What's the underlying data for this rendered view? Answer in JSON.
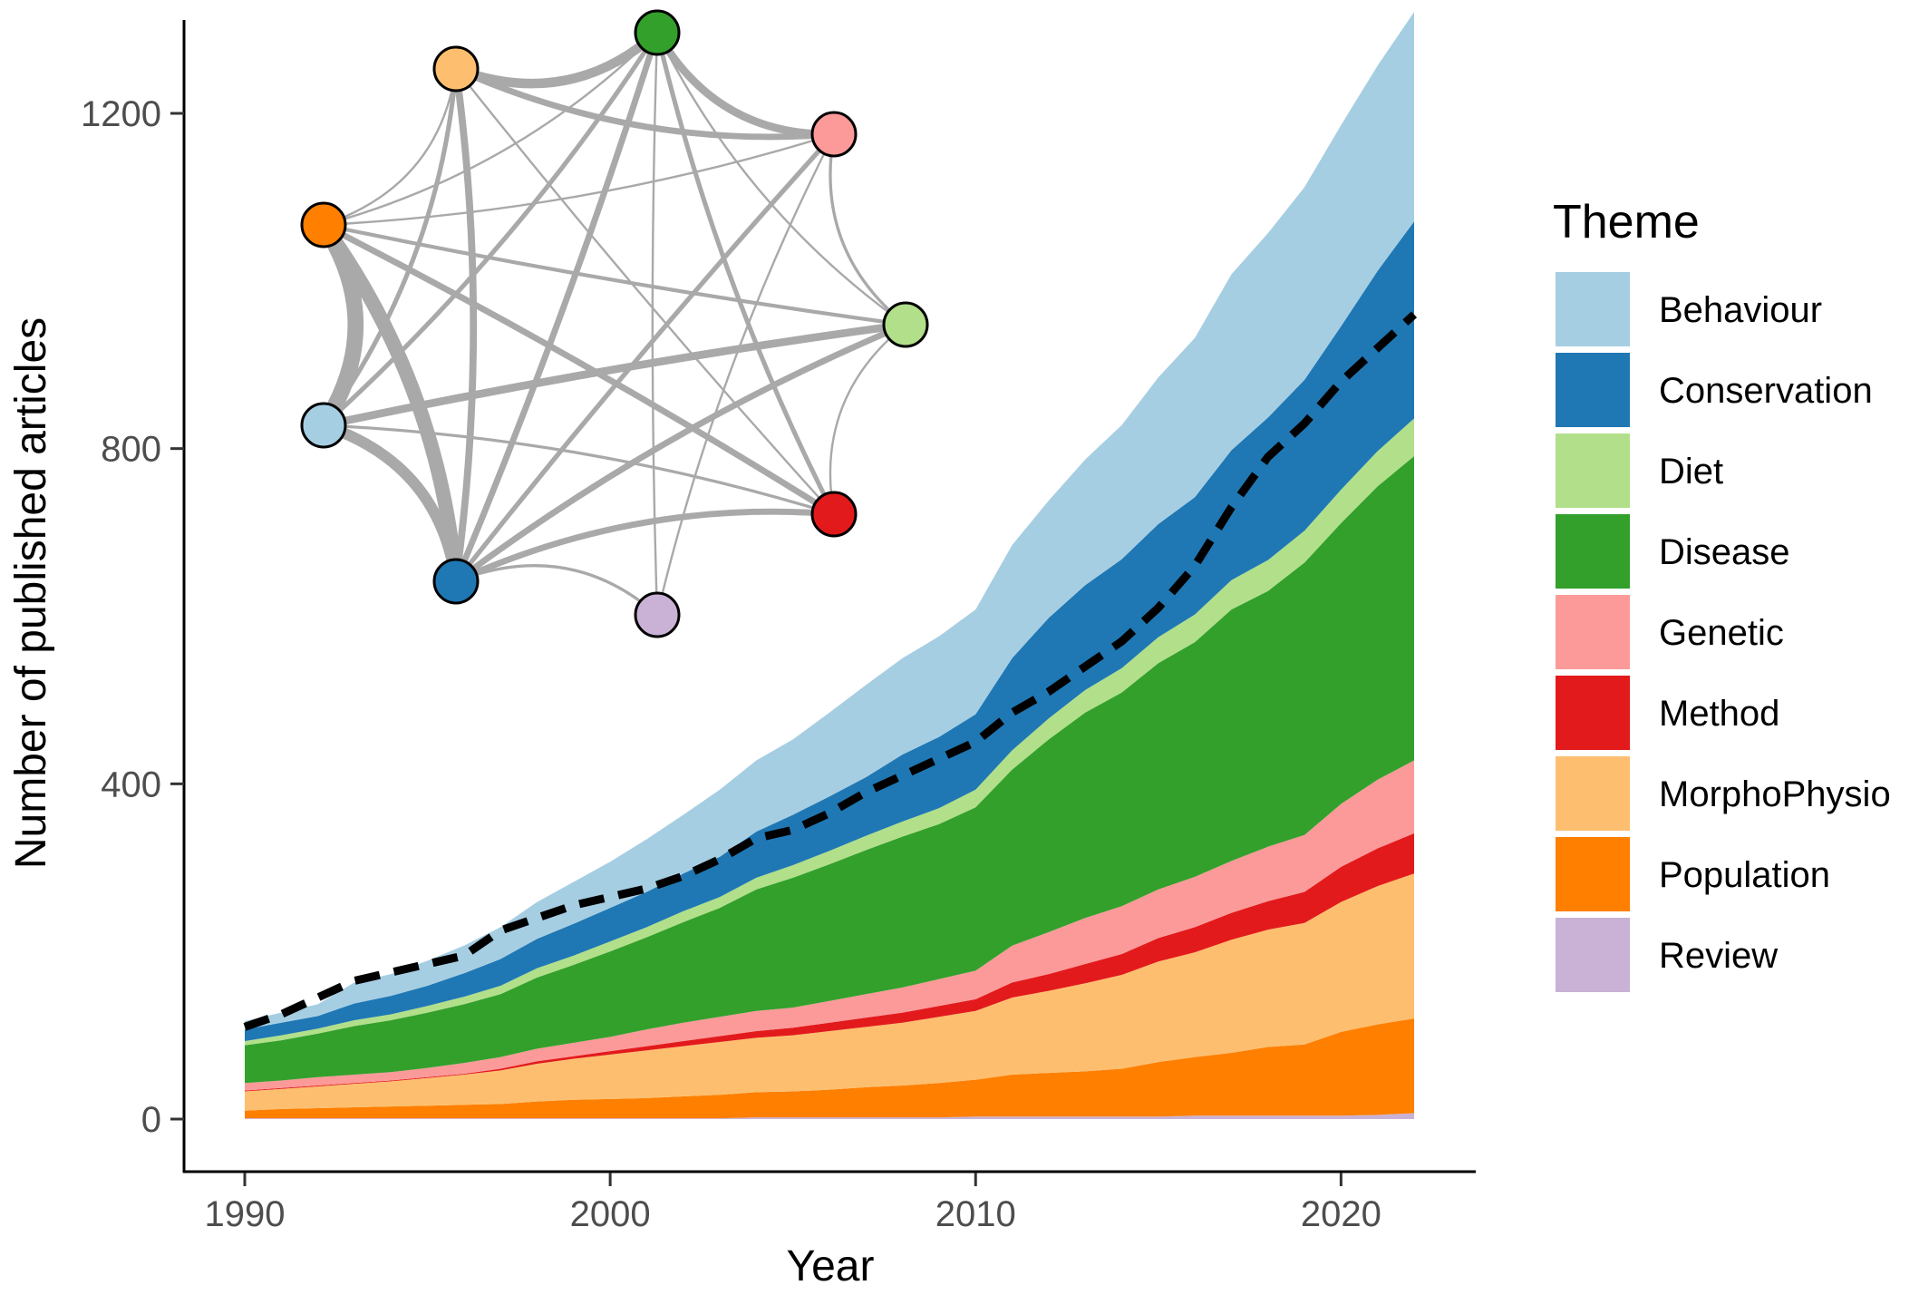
{
  "chart_data": {
    "type": "area",
    "stacked": true,
    "xlabel": "Year",
    "ylabel": "Number of published articles",
    "xlim": [
      1990,
      2022
    ],
    "ylim": [
      0,
      1300
    ],
    "x_ticks": [
      1990,
      2000,
      2010,
      2020
    ],
    "y_ticks": [
      0,
      400,
      800,
      1200
    ],
    "grid": false,
    "legend": {
      "title": "Theme",
      "placement": "right"
    },
    "x": [
      1990,
      1991,
      1992,
      1993,
      1994,
      1995,
      1996,
      1997,
      1998,
      1999,
      2000,
      2001,
      2002,
      2003,
      2004,
      2005,
      2006,
      2007,
      2008,
      2009,
      2010,
      2011,
      2012,
      2013,
      2014,
      2015,
      2016,
      2017,
      2018,
      2019,
      2020,
      2021,
      2022
    ],
    "series": [
      {
        "name": "Review",
        "color": "#CAB2D6",
        "values": [
          1,
          1,
          1,
          1,
          1,
          1,
          1,
          1,
          1,
          1,
          1,
          1,
          1,
          1,
          2,
          2,
          2,
          2,
          2,
          2,
          3,
          3,
          3,
          3,
          3,
          3,
          4,
          4,
          4,
          4,
          4,
          5,
          7
        ]
      },
      {
        "name": "Population",
        "color": "#FF7F00",
        "values": [
          9,
          11,
          12,
          13,
          14,
          15,
          16,
          17,
          20,
          22,
          23,
          24,
          26,
          28,
          30,
          31,
          33,
          36,
          38,
          41,
          44,
          50,
          52,
          54,
          57,
          65,
          70,
          75,
          82,
          85,
          100,
          108,
          113
        ]
      },
      {
        "name": "MorphoPhysio",
        "color": "#FDBF6F",
        "values": [
          23,
          24,
          26,
          28,
          30,
          33,
          36,
          40,
          45,
          49,
          53,
          57,
          60,
          63,
          65,
          67,
          70,
          72,
          75,
          79,
          82,
          92,
          98,
          105,
          112,
          120,
          125,
          135,
          140,
          145,
          155,
          165,
          173
        ]
      },
      {
        "name": "Method",
        "color": "#E31A1C",
        "values": [
          1,
          1,
          1,
          1,
          1,
          1,
          1,
          2,
          3,
          3,
          4,
          5,
          6,
          7,
          8,
          9,
          10,
          11,
          12,
          13,
          14,
          18,
          20,
          23,
          25,
          28,
          30,
          32,
          34,
          37,
          42,
          45,
          48
        ]
      },
      {
        "name": "Genetic",
        "color": "#FB9A99",
        "values": [
          9,
          9,
          10,
          10,
          10,
          11,
          13,
          14,
          15,
          16,
          17,
          20,
          22,
          23,
          24,
          24,
          26,
          28,
          30,
          32,
          34,
          44,
          50,
          55,
          57,
          58,
          60,
          62,
          65,
          68,
          75,
          82,
          87
        ]
      },
      {
        "name": "Disease",
        "color": "#33A02C",
        "values": [
          45,
          48,
          52,
          58,
          62,
          66,
          70,
          75,
          85,
          93,
          102,
          110,
          120,
          130,
          145,
          155,
          163,
          172,
          180,
          185,
          195,
          210,
          230,
          245,
          255,
          270,
          280,
          300,
          305,
          325,
          335,
          350,
          363
        ]
      },
      {
        "name": "Diet",
        "color": "#B2DF8A",
        "values": [
          5,
          6,
          6,
          7,
          7,
          8,
          9,
          10,
          11,
          11,
          12,
          12,
          13,
          13,
          14,
          15,
          16,
          17,
          18,
          19,
          21,
          23,
          25,
          27,
          29,
          31,
          33,
          35,
          37,
          38,
          40,
          42,
          45
        ]
      },
      {
        "name": "Conservation",
        "color": "#1F78B4",
        "values": [
          14,
          15,
          15,
          20,
          22,
          24,
          28,
          32,
          35,
          38,
          40,
          42,
          45,
          48,
          55,
          60,
          65,
          70,
          80,
          85,
          90,
          110,
          120,
          125,
          130,
          135,
          140,
          155,
          170,
          180,
          195,
          215,
          235
        ]
      },
      {
        "name": "Behaviour",
        "color": "#A6CEE3",
        "values": [
          10,
          12,
          14,
          25,
          26,
          30,
          33,
          38,
          44,
          50,
          55,
          63,
          70,
          80,
          85,
          90,
          100,
          110,
          115,
          120,
          125,
          135,
          140,
          150,
          160,
          175,
          190,
          210,
          220,
          230,
          240,
          245,
          250
        ]
      }
    ],
    "total_line": {
      "style": "dashed",
      "color": "#000000",
      "values": [
        110,
        125,
        145,
        165,
        175,
        185,
        195,
        225,
        240,
        255,
        265,
        275,
        290,
        310,
        335,
        345,
        365,
        390,
        410,
        430,
        450,
        485,
        510,
        540,
        570,
        610,
        660,
        730,
        790,
        830,
        880,
        920,
        960
      ]
    },
    "network_inset": {
      "nodes": [
        "MorphoPhysio",
        "Disease",
        "Genetic",
        "Diet",
        "Method",
        "Review",
        "Conservation",
        "Behaviour",
        "Population"
      ],
      "edges": [
        [
          "Behaviour",
          "Population",
          18
        ],
        [
          "Behaviour",
          "Conservation",
          12
        ],
        [
          "Population",
          "Conservation",
          16
        ],
        [
          "MorphoPhysio",
          "Disease",
          10
        ],
        [
          "Disease",
          "Genetic",
          8
        ],
        [
          "MorphoPhysio",
          "Genetic",
          6
        ],
        [
          "MorphoPhysio",
          "Conservation",
          7
        ],
        [
          "Behaviour",
          "Diet",
          8
        ],
        [
          "Conservation",
          "Diet",
          6
        ],
        [
          "Conservation",
          "Method",
          6
        ],
        [
          "Population",
          "Method",
          6
        ],
        [
          "Disease",
          "Conservation",
          6
        ],
        [
          "Disease",
          "Method",
          4
        ],
        [
          "Genetic",
          "Conservation",
          4
        ],
        [
          "Behaviour",
          "Disease",
          4
        ],
        [
          "Behaviour",
          "MorphoPhysio",
          4
        ],
        [
          "Conservation",
          "Genetic",
          4
        ],
        [
          "Population",
          "Diet",
          3
        ],
        [
          "Behaviour",
          "Method",
          2
        ],
        [
          "Genetic",
          "Diet",
          2
        ],
        [
          "Conservation",
          "Review",
          2
        ],
        [
          "Population",
          "MorphoPhysio",
          1
        ],
        [
          "Population",
          "Genetic",
          1
        ],
        [
          "Disease",
          "Diet",
          1
        ],
        [
          "MorphoPhysio",
          "Method",
          1
        ],
        [
          "Diet",
          "Method",
          1
        ],
        [
          "Disease",
          "Review",
          1
        ],
        [
          "Genetic",
          "Review",
          1
        ],
        [
          "Population",
          "Disease",
          1
        ]
      ]
    }
  }
}
